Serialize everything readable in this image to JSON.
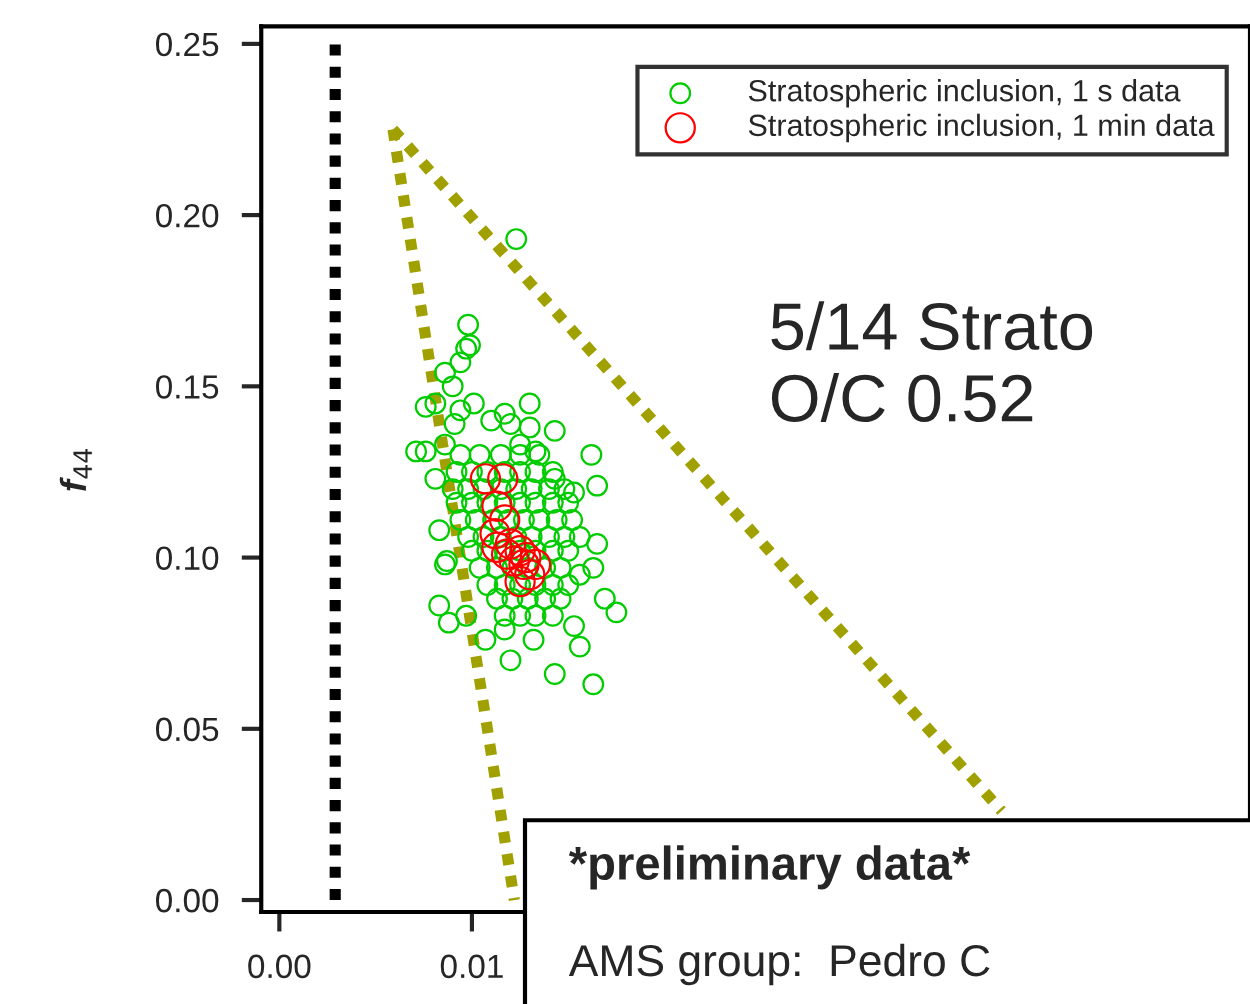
{
  "chart_data": {
    "type": "scatter",
    "ylabel": "f$_{44}$",
    "annotations": [
      "5/14 Strato\nO/C 0.52",
      "*preliminary data*",
      "AMS group:  Pedro C"
    ],
    "xlim": [
      -0.00094,
      0.0504
    ],
    "ylim": [
      -0.0035,
      0.2551
    ],
    "xticks": [
      {
        "value": 0,
        "label": "0.00"
      },
      {
        "value": 0.01,
        "label": "0.01"
      }
    ],
    "yticks": [
      {
        "value": 0,
        "label": "0.00"
      },
      {
        "value": 0.05,
        "label": "0.05"
      },
      {
        "value": 0.1,
        "label": "0.10"
      },
      {
        "value": 0.15,
        "label": "0.15"
      },
      {
        "value": 0.2,
        "label": "0.20"
      },
      {
        "value": 0.25,
        "label": "0.25"
      }
    ],
    "grid": false,
    "legend": "top right",
    "series": [
      {
        "type": "line",
        "color": "#000000",
        "line_style": "dotted",
        "x": [
          0.0029,
          0.0029
        ],
        "values": [
          0,
          0.25
        ]
      },
      {
        "type": "line",
        "color": "#a0a000",
        "line_style": "dotted",
        "x": [
          0.0059,
          0.0122
        ],
        "values": [
          0.225,
          0
        ]
      },
      {
        "type": "line",
        "color": "#a0a000",
        "line_style": "dotted",
        "x": [
          0.0059,
          0.0375
        ],
        "values": [
          0.225,
          0.026
        ]
      },
      {
        "name": "Stratospheric inclusion, 1 s data",
        "color": "#00cc00",
        "marker": "circle",
        "x": [
          0.0123,
          0.0098,
          0.0099,
          0.0097,
          0.0094,
          0.0086,
          0.009,
          0.0081,
          0.0076,
          0.0101,
          0.0094,
          0.013,
          0.0117,
          0.011,
          0.012,
          0.0143,
          0.013,
          0.0091,
          0.0071,
          0.0076,
          0.0086,
          0.0162,
          0.0133,
          0.0125,
          0.0165,
          0.0153,
          0.0143,
          0.0081,
          0.0083,
          0.0087,
          0.0086,
          0.0165,
          0.0163,
          0.0156,
          0.0175,
          0.0169,
          0.0083,
          0.0088,
          0.0097,
          0.0107,
          0.012,
          0.0143,
          0.0163,
          0.0156,
          0.0132,
          0.0117,
          0.0153,
          0.0094,
          0.0104,
          0.0115,
          0.0125,
          0.0135,
          0.0092,
          0.01,
          0.0108,
          0.0117,
          0.0125,
          0.0133,
          0.0142,
          0.009,
          0.0098,
          0.0106,
          0.0115,
          0.0123,
          0.0131,
          0.014,
          0.0148,
          0.0092,
          0.01,
          0.0108,
          0.0117,
          0.0125,
          0.0133,
          0.0142,
          0.015,
          0.0094,
          0.0102,
          0.0111,
          0.0119,
          0.0127,
          0.0135,
          0.0144,
          0.0152,
          0.0098,
          0.0106,
          0.0115,
          0.0123,
          0.0131,
          0.014,
          0.0148,
          0.0156,
          0.01,
          0.0108,
          0.0117,
          0.0125,
          0.0133,
          0.0142,
          0.015,
          0.0104,
          0.0113,
          0.0121,
          0.0129,
          0.0138,
          0.0146,
          0.0108,
          0.0117,
          0.0125,
          0.0133,
          0.0142,
          0.015,
          0.0113,
          0.0121,
          0.0129,
          0.0138,
          0.0146,
          0.0117,
          0.0125,
          0.0133,
          0.0142
        ],
        "values": [
          0.193,
          0.168,
          0.162,
          0.161,
          0.157,
          0.154,
          0.15,
          0.145,
          0.144,
          0.145,
          0.143,
          0.145,
          0.142,
          0.14,
          0.139,
          0.137,
          0.138,
          0.139,
          0.131,
          0.131,
          0.133,
          0.13,
          0.131,
          0.133,
          0.121,
          0.119,
          0.123,
          0.123,
          0.108,
          0.099,
          0.098,
          0.104,
          0.097,
          0.095,
          0.084,
          0.088,
          0.086,
          0.081,
          0.083,
          0.076,
          0.07,
          0.066,
          0.063,
          0.074,
          0.076,
          0.079,
          0.08,
          0.13,
          0.13,
          0.13,
          0.13,
          0.13,
          0.125,
          0.125,
          0.125,
          0.125,
          0.125,
          0.125,
          0.125,
          0.12,
          0.12,
          0.12,
          0.12,
          0.12,
          0.12,
          0.12,
          0.12,
          0.116,
          0.116,
          0.116,
          0.116,
          0.116,
          0.116,
          0.116,
          0.116,
          0.111,
          0.111,
          0.111,
          0.111,
          0.111,
          0.111,
          0.111,
          0.111,
          0.106,
          0.106,
          0.106,
          0.106,
          0.106,
          0.106,
          0.106,
          0.106,
          0.102,
          0.102,
          0.102,
          0.102,
          0.102,
          0.102,
          0.102,
          0.097,
          0.097,
          0.097,
          0.097,
          0.097,
          0.097,
          0.092,
          0.092,
          0.092,
          0.092,
          0.092,
          0.092,
          0.088,
          0.088,
          0.088,
          0.088,
          0.088,
          0.083,
          0.083,
          0.083,
          0.083
        ]
      },
      {
        "name": "Stratospheric inclusion, 1 min data",
        "color": "#ff0000",
        "marker": "circle",
        "x": [
          0.0107,
          0.0116,
          0.0113,
          0.0117,
          0.0112,
          0.0113,
          0.012,
          0.0125,
          0.0122,
          0.0127,
          0.013,
          0.0125,
          0.0133,
          0.0128,
          0.0118
        ],
        "values": [
          0.123,
          0.123,
          0.115,
          0.111,
          0.107,
          0.103,
          0.104,
          0.102,
          0.099,
          0.098,
          0.095,
          0.093,
          0.098,
          0.1,
          0.101
        ]
      }
    ]
  }
}
